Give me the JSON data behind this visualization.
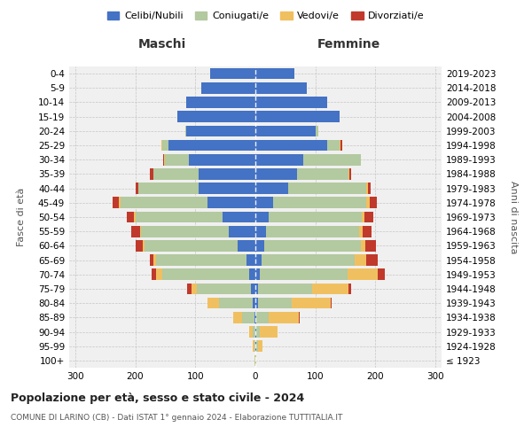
{
  "age_groups": [
    "100+",
    "95-99",
    "90-94",
    "85-89",
    "80-84",
    "75-79",
    "70-74",
    "65-69",
    "60-64",
    "55-59",
    "50-54",
    "45-49",
    "40-44",
    "35-39",
    "30-34",
    "25-29",
    "20-24",
    "15-19",
    "10-14",
    "5-9",
    "0-4"
  ],
  "birth_years": [
    "≤ 1923",
    "1924-1928",
    "1929-1933",
    "1934-1938",
    "1939-1943",
    "1944-1948",
    "1949-1953",
    "1954-1958",
    "1959-1963",
    "1964-1968",
    "1969-1973",
    "1974-1978",
    "1979-1983",
    "1984-1988",
    "1989-1993",
    "1994-1998",
    "1999-2003",
    "2004-2008",
    "2009-2013",
    "2014-2018",
    "2019-2023"
  ],
  "males": {
    "celibi": [
      0,
      0,
      0,
      2,
      5,
      8,
      10,
      15,
      30,
      45,
      55,
      80,
      95,
      95,
      110,
      145,
      115,
      130,
      115,
      90,
      75
    ],
    "coniugati": [
      1,
      2,
      5,
      20,
      55,
      90,
      145,
      150,
      155,
      145,
      145,
      145,
      100,
      75,
      40,
      10,
      2,
      0,
      0,
      0,
      0
    ],
    "vedovi": [
      0,
      2,
      5,
      15,
      20,
      8,
      10,
      5,
      3,
      2,
      2,
      2,
      0,
      0,
      2,
      2,
      0,
      0,
      0,
      0,
      0
    ],
    "divorziati": [
      0,
      0,
      0,
      0,
      0,
      8,
      8,
      5,
      12,
      15,
      12,
      10,
      5,
      5,
      2,
      0,
      0,
      0,
      0,
      0,
      0
    ]
  },
  "females": {
    "nubili": [
      0,
      2,
      2,
      2,
      5,
      5,
      8,
      10,
      15,
      18,
      22,
      30,
      55,
      70,
      80,
      120,
      100,
      140,
      120,
      85,
      65
    ],
    "coniugate": [
      0,
      2,
      5,
      20,
      55,
      90,
      145,
      155,
      160,
      155,
      155,
      155,
      130,
      85,
      95,
      20,
      5,
      0,
      0,
      0,
      0
    ],
    "vedove": [
      2,
      8,
      30,
      50,
      65,
      60,
      50,
      20,
      8,
      5,
      5,
      5,
      2,
      2,
      0,
      2,
      0,
      0,
      0,
      0,
      0
    ],
    "divorziate": [
      0,
      0,
      0,
      2,
      2,
      5,
      12,
      18,
      18,
      15,
      15,
      12,
      5,
      2,
      0,
      2,
      0,
      0,
      0,
      0,
      0
    ]
  },
  "color_celibi": "#4472c4",
  "color_coniugati": "#b3c9a0",
  "color_vedovi": "#f0c060",
  "color_divorziati": "#c0392b",
  "xlim": 310,
  "title_main": "Popolazione per età, sesso e stato civile - 2024",
  "title_sub": "COMUNE DI LARINO (CB) - Dati ISTAT 1° gennaio 2024 - Elaborazione TUTTITALIA.IT",
  "label_maschi": "Maschi",
  "label_femmine": "Femmine",
  "label_fasce": "Fasce di età",
  "label_anni": "Anni di nascita",
  "legend_labels": [
    "Celibi/Nubili",
    "Coniugati/e",
    "Vedovi/e",
    "Divorziati/e"
  ],
  "bg_color": "#ffffff",
  "grid_color": "#cccccc"
}
